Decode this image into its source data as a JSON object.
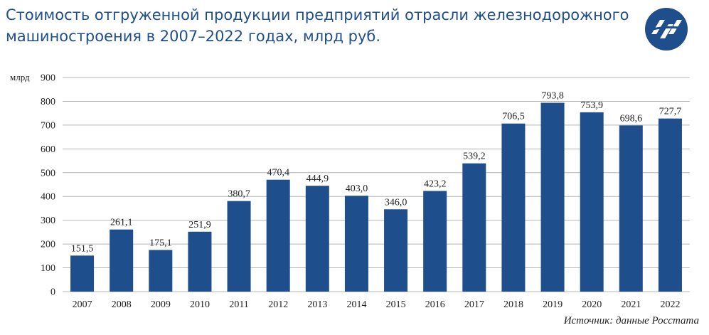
{
  "title": "Стоимость отгруженной продукции предприятий отрасли железнодорожного машиностроения в 2007–2022 годах, млрд руб.",
  "source": "Источник: данные Росстата",
  "logo": {
    "icon": "company-logo-icon"
  },
  "colors": {
    "bar": "#1f4e8c",
    "title": "#1f4e8c",
    "grid": "#b5b5b5"
  },
  "chart_data": {
    "type": "bar",
    "title": "Стоимость отгруженной продукции предприятий отрасли железнодорожного машиностроения в 2007–2022 годах, млрд руб.",
    "ylabel": "млрд",
    "ylim": [
      0,
      900
    ],
    "yticks": [
      "0",
      "100",
      "200",
      "300",
      "400",
      "500",
      "600",
      "700",
      "800",
      "900"
    ],
    "grid": true,
    "categories": [
      "2007",
      "2008",
      "2009",
      "2010",
      "2011",
      "2012",
      "2013",
      "2014",
      "2015",
      "2016",
      "2017",
      "2018",
      "2019",
      "2020",
      "2021",
      "2022"
    ],
    "values": [
      151.5,
      261.1,
      175.1,
      251.9,
      380.7,
      470.4,
      444.9,
      403.0,
      346.0,
      423.2,
      539.2,
      706.5,
      793.8,
      753.9,
      698.6,
      727.7
    ],
    "value_labels": [
      "151,5",
      "261,1",
      "175,1",
      "251,9",
      "380,7",
      "470,4",
      "444,9",
      "403,0",
      "346,0",
      "423,2",
      "539,2",
      "706,5",
      "793,8",
      "753,9",
      "698,6",
      "727,7"
    ]
  }
}
